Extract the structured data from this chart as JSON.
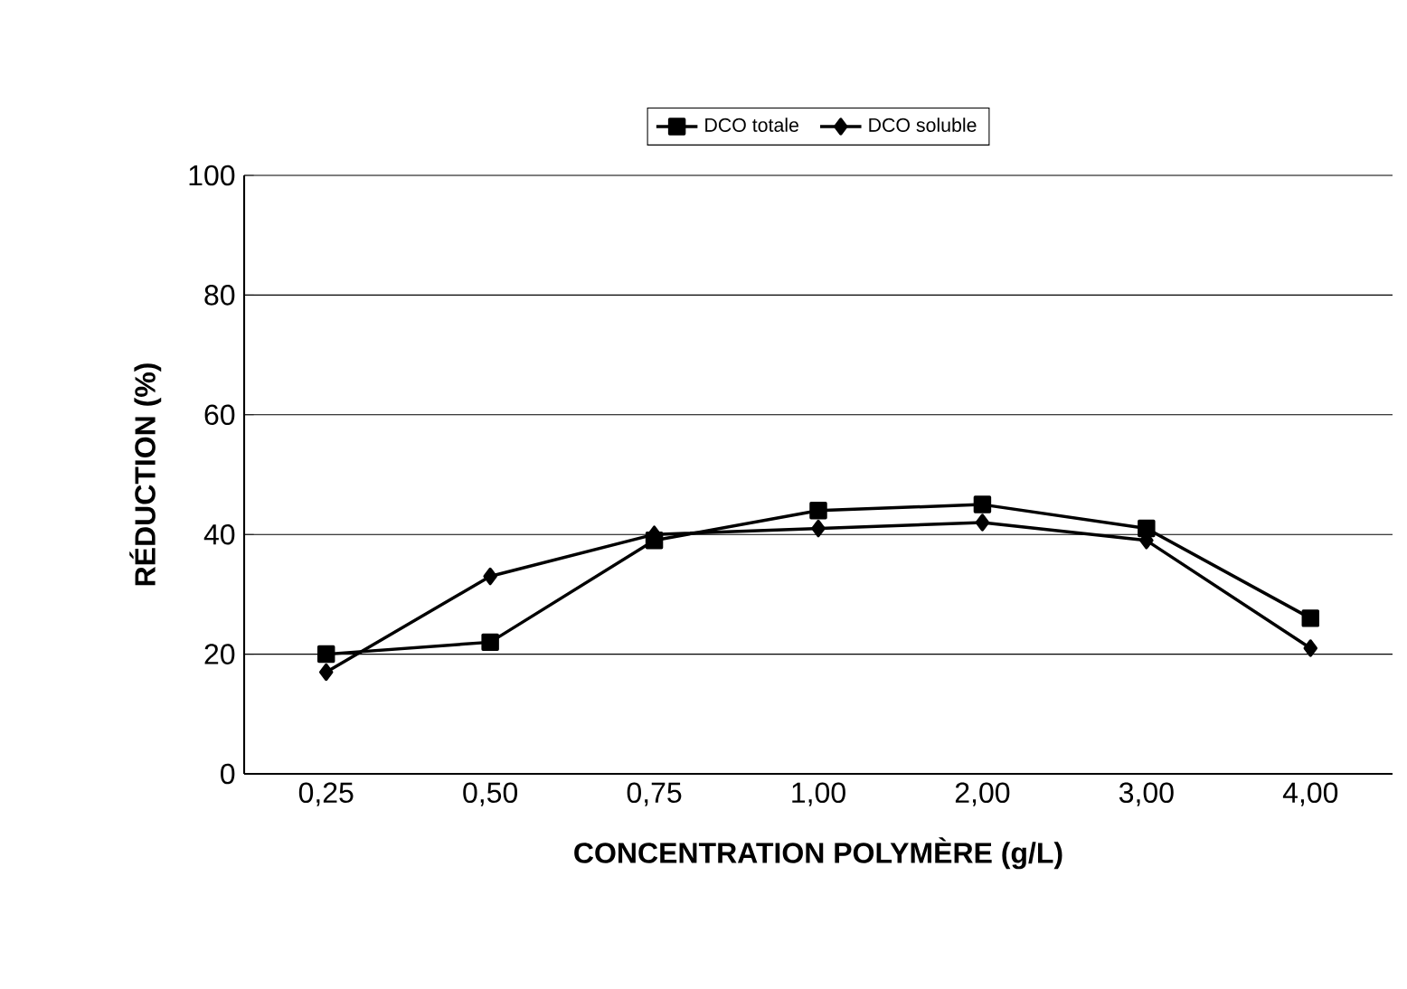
{
  "chart_data": {
    "type": "line",
    "xlabel": "CONCENTRATION POLYMÈRE (g/L)",
    "ylabel": "RÉDUCTION  (%)",
    "categories": [
      "0,25",
      "0,50",
      "0,75",
      "1,00",
      "2,00",
      "3,00",
      "4,00"
    ],
    "series": [
      {
        "name": "DCO totale",
        "color": "#000000",
        "marker": "square",
        "values": [
          20,
          22,
          39,
          44,
          45,
          41,
          26
        ]
      },
      {
        "name": "DCO soluble",
        "color": "#000000",
        "marker": "diamond",
        "values": [
          17,
          33,
          40,
          41,
          42,
          39,
          21
        ]
      }
    ],
    "ylim": [
      0,
      100
    ],
    "yticks": [
      0,
      20,
      40,
      60,
      80,
      100
    ],
    "grid": "y",
    "legend": "top",
    "line_style": "solid"
  }
}
